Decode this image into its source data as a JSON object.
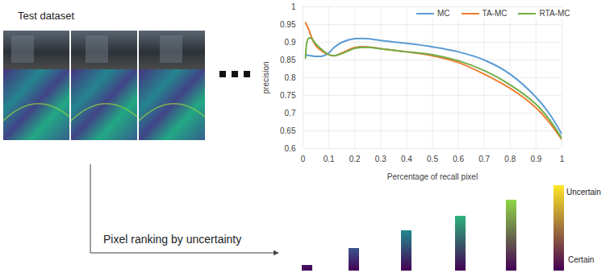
{
  "chart_data": {
    "type": "line",
    "x_label": "Percentage of recall pixel",
    "y_label": "precision",
    "x": [
      0.01,
      0.02,
      0.03,
      0.05,
      0.08,
      0.1,
      0.12,
      0.15,
      0.2,
      0.25,
      0.3,
      0.4,
      0.5,
      0.6,
      0.7,
      0.8,
      0.9,
      0.95,
      1
    ],
    "series": [
      {
        "name": "MC",
        "color": "#5b9bd5",
        "values": [
          0.865,
          0.863,
          0.862,
          0.86,
          0.862,
          0.87,
          0.885,
          0.9,
          0.91,
          0.91,
          0.905,
          0.897,
          0.887,
          0.873,
          0.85,
          0.81,
          0.745,
          0.7,
          0.64
        ]
      },
      {
        "name": "TA-MC",
        "color": "#ed7d31",
        "values": [
          0.955,
          0.94,
          0.92,
          0.89,
          0.872,
          0.865,
          0.862,
          0.87,
          0.885,
          0.887,
          0.882,
          0.873,
          0.862,
          0.843,
          0.81,
          0.77,
          0.715,
          0.675,
          0.625
        ]
      },
      {
        "name": "RTA-MC",
        "color": "#70ad47",
        "values": [
          0.855,
          0.91,
          0.912,
          0.895,
          0.875,
          0.865,
          0.862,
          0.868,
          0.883,
          0.886,
          0.882,
          0.873,
          0.865,
          0.848,
          0.82,
          0.78,
          0.725,
          0.683,
          0.628
        ]
      }
    ],
    "xlim": [
      0,
      1
    ],
    "xticks": [
      0,
      0.1,
      0.2,
      0.3,
      0.4,
      0.5,
      0.6,
      0.7,
      0.8,
      0.9,
      1
    ],
    "ylim": [
      0.6,
      1
    ],
    "yticks": [
      0.6,
      0.65,
      0.7,
      0.75,
      0.8,
      0.85,
      0.9,
      0.95,
      1
    ],
    "grid": true,
    "legend": "upper right"
  },
  "diagram": {
    "dataset_label": "Test dataset",
    "ranking_label": "Pixel ranking by uncertainty",
    "colorbar_top": "Uncertain",
    "colorbar_bottom": "Certain"
  }
}
